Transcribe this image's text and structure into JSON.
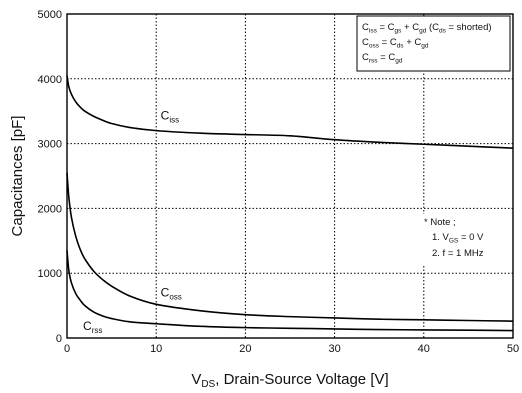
{
  "chart_data": {
    "type": "line",
    "xlabel": {
      "main": "V",
      "sub": "DS",
      "rest": ", Drain-Source Voltage [V]"
    },
    "ylabel": "Capacitances [pF]",
    "xlim": [
      0,
      50
    ],
    "ylim": [
      0,
      5000
    ],
    "x_ticks": [
      0,
      10,
      20,
      30,
      40,
      50
    ],
    "y_ticks": [
      0,
      1000,
      2000,
      3000,
      4000,
      5000
    ],
    "grid": "dotted",
    "legend_box": {
      "position": "top-right",
      "lines": [
        {
          "a": "C",
          "a_sub": "iss",
          "b": " = C",
          "b_sub": "gs",
          "c": " + C",
          "c_sub": "gd",
          "d": " (C",
          "d_sub": "ds",
          "e": " = shorted)"
        },
        {
          "a": "C",
          "a_sub": "oss",
          "b": " = C",
          "b_sub": "ds",
          "c": " + C",
          "c_sub": "gd",
          "d": "",
          "d_sub": "",
          "e": ""
        },
        {
          "a": "C",
          "a_sub": "rss",
          "b": " = C",
          "b_sub": "gd",
          "c": "",
          "c_sub": "",
          "d": "",
          "d_sub": "",
          "e": ""
        }
      ]
    },
    "note": {
      "title": "* Note ;",
      "line1": {
        "a": "1. V",
        "sub": "GS",
        "b": " = 0 V"
      },
      "line2": "2. f = 1 MHz"
    },
    "series": [
      {
        "name": "C",
        "name_sub": "iss",
        "label_at": [
          10.5,
          3370
        ],
        "x": [
          0,
          0.2,
          0.5,
          1,
          1.5,
          2,
          3,
          4,
          5,
          7,
          10,
          15,
          20,
          25,
          30,
          35,
          40,
          45,
          50
        ],
        "y": [
          4050,
          3880,
          3760,
          3640,
          3560,
          3500,
          3420,
          3360,
          3310,
          3250,
          3200,
          3160,
          3140,
          3120,
          3060,
          3020,
          2990,
          2960,
          2930
        ]
      },
      {
        "name": "C",
        "name_sub": "oss",
        "label_at": [
          10.5,
          640
        ],
        "x": [
          0,
          0.2,
          0.5,
          1,
          1.5,
          2,
          3,
          4,
          5,
          7,
          10,
          15,
          20,
          25,
          30,
          35,
          40,
          45,
          50
        ],
        "y": [
          2550,
          2180,
          1860,
          1560,
          1360,
          1220,
          1030,
          900,
          800,
          650,
          520,
          420,
          360,
          330,
          310,
          290,
          280,
          270,
          260
        ]
      },
      {
        "name": "C",
        "name_sub": "rss",
        "label_at": [
          1.8,
          120
        ],
        "x": [
          0,
          0.2,
          0.5,
          1,
          1.5,
          2,
          3,
          4,
          5,
          7,
          10,
          15,
          20,
          25,
          30,
          35,
          40,
          45,
          50
        ],
        "y": [
          1350,
          1050,
          850,
          680,
          580,
          500,
          400,
          340,
          300,
          250,
          220,
          180,
          160,
          150,
          140,
          130,
          125,
          120,
          115
        ]
      }
    ]
  }
}
